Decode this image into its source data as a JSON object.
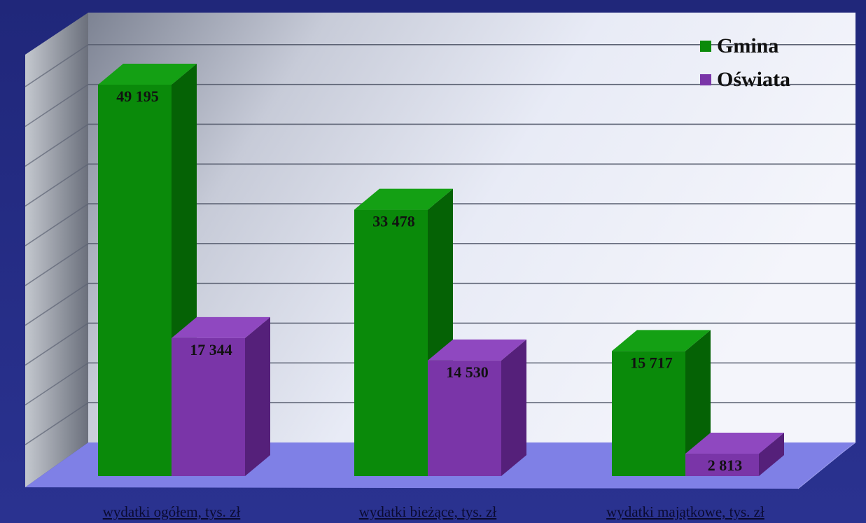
{
  "chart_data": {
    "type": "bar",
    "categories": [
      "wydatki ogółem, tys. zł",
      "wydatki bieżące, tys. zł",
      "wydatki majątkowe, tys. zł"
    ],
    "series": [
      {
        "name": "Gmina",
        "values": [
          49195,
          33478,
          15717
        ],
        "labels": [
          "49 195",
          "33 478",
          "15 717"
        ],
        "color": "#0a8a0a"
      },
      {
        "name": "Oświata",
        "values": [
          17344,
          14530,
          2813
        ],
        "labels": [
          "17 344",
          "14 530",
          "2 813"
        ],
        "color": "#7a35a8"
      }
    ],
    "ylim": [
      0,
      55000
    ],
    "grid": true,
    "legend_position": "top-right"
  },
  "colors": {
    "gmina_front": "#0a8a0a",
    "gmina_side": "#056205",
    "gmina_top": "#14a014",
    "oswiata_front": "#7a35a8",
    "oswiata_side": "#55207a",
    "oswiata_top": "#8f48c0",
    "floor": "#7f80e6",
    "wall_light": "#eef0f8",
    "wall_dark": "#8a909e",
    "grid": "#5d6374"
  }
}
